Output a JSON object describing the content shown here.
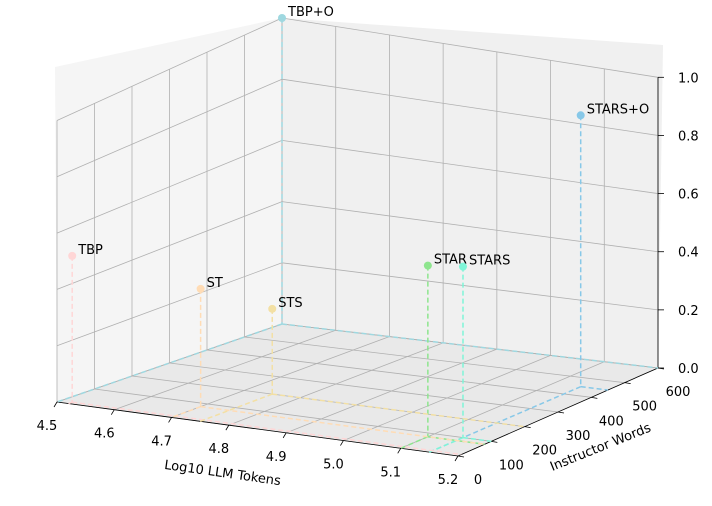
{
  "chart_data": {
    "type": "scatter3d",
    "x_label": "Log10 LLM Tokens",
    "y_label": "Instructor Words",
    "z_label": "",
    "x_ticks": [
      "4.5",
      "4.6",
      "4.7",
      "4.8",
      "4.9",
      "5.0",
      "5.1",
      "5.2"
    ],
    "y_ticks": [
      "0",
      "100",
      "200",
      "300",
      "400",
      "500",
      "600"
    ],
    "z_ticks": [
      "0.0",
      "0.2",
      "0.4",
      "0.6",
      "0.8",
      "1.0"
    ],
    "xlim": [
      4.5,
      5.2
    ],
    "ylim": [
      0,
      600
    ],
    "zlim": [
      0,
      1.0
    ],
    "grid": true,
    "points": [
      {
        "label": "TBP+O",
        "x": 4.5,
        "y": 600,
        "z": 1.0,
        "color": "#9fd8e0"
      },
      {
        "label": "STARS+O",
        "x": 5.15,
        "y": 450,
        "z": 0.95,
        "color": "#87c8e8"
      },
      {
        "label": "STAR",
        "x": 5.1,
        "y": 80,
        "z": 0.63,
        "color": "#8ee58e"
      },
      {
        "label": "STARS",
        "x": 5.15,
        "y": 100,
        "z": 0.63,
        "color": "#7ff5d8"
      },
      {
        "label": "TBP",
        "x": 4.52,
        "y": 10,
        "z": 0.52,
        "color": "#ffd6d6"
      },
      {
        "label": "ST",
        "x": 4.7,
        "y": 80,
        "z": 0.42,
        "color": "#ffdcb5"
      },
      {
        "label": "STS",
        "x": 4.75,
        "y": 200,
        "z": 0.3,
        "color": "#f3e0a4"
      }
    ]
  }
}
